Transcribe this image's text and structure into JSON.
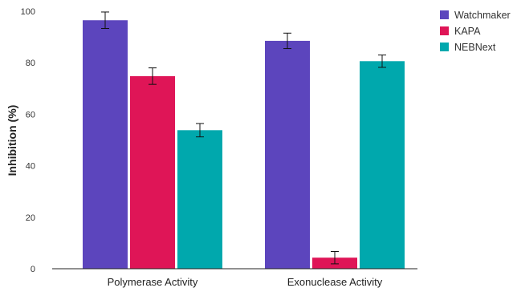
{
  "chart_data": {
    "type": "bar",
    "title": "",
    "xlabel": "",
    "ylabel": "Inhibition (%)",
    "ylim": [
      0,
      100
    ],
    "yticks": [
      0,
      20,
      40,
      60,
      80,
      100
    ],
    "grid": false,
    "legend_position": "top-right",
    "categories": [
      "Polymerase Activity",
      "Exonuclease Activity"
    ],
    "series": [
      {
        "name": "Watchmaker",
        "color": "#5c45bd",
        "values": [
          96.5,
          88.5
        ],
        "errors": [
          3.2,
          3.0
        ]
      },
      {
        "name": "KAPA",
        "color": "#df1557",
        "values": [
          74.8,
          4.3
        ],
        "errors": [
          3.2,
          2.4
        ]
      },
      {
        "name": "NEBNext",
        "color": "#00a8ad",
        "values": [
          53.8,
          80.6
        ],
        "errors": [
          2.6,
          2.4
        ]
      }
    ]
  }
}
